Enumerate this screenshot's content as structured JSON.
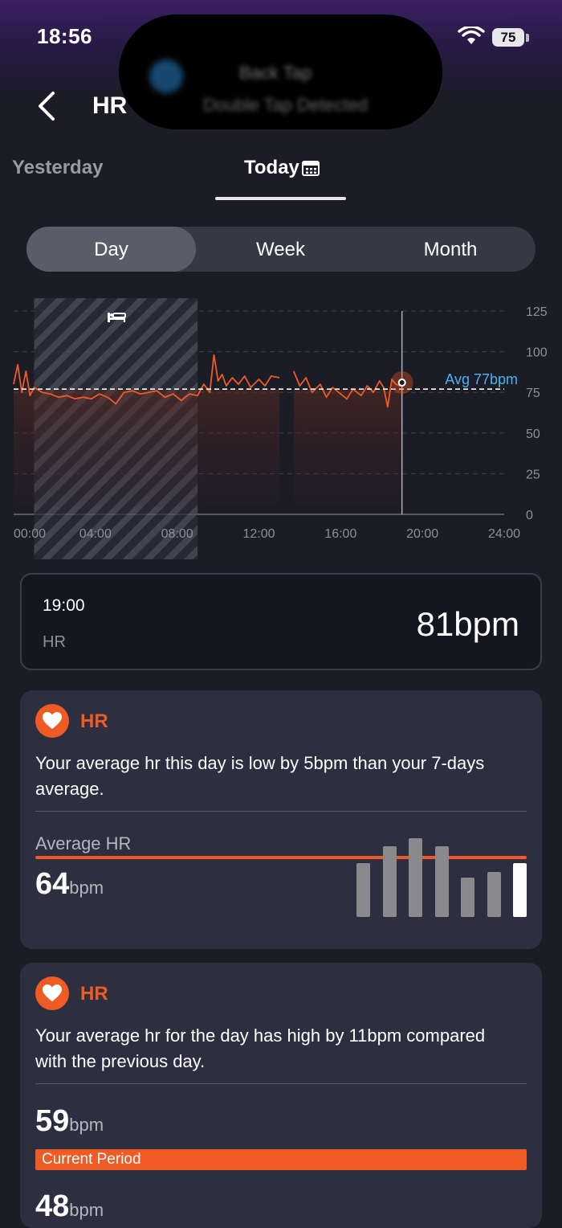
{
  "status_bar": {
    "time": "18:56",
    "battery": "75"
  },
  "notification": {
    "title": "Back Tap",
    "subtitle": "Double Tap Detected"
  },
  "header": {
    "title": "HR"
  },
  "date_tabs": {
    "previous": "Yesterday",
    "current": "Today"
  },
  "segments": {
    "day": "Day",
    "week": "Week",
    "month": "Month",
    "selected": "Day"
  },
  "chart_data": {
    "type": "line",
    "x_tick_labels": [
      "00:00",
      "04:00",
      "08:00",
      "12:00",
      "16:00",
      "20:00",
      "24:00"
    ],
    "y_tick_labels": [
      "125",
      "100",
      "75",
      "50",
      "25",
      "0"
    ],
    "ylim": [
      0,
      125
    ],
    "xlim_hours": [
      0,
      24
    ],
    "average_label": "Avg 77bpm",
    "average_value": 77,
    "sleep_period_hours": [
      1,
      9
    ],
    "cursor_hour": 19,
    "cursor_value": 81,
    "gap_hours": [
      13,
      13.7
    ],
    "series": [
      {
        "x": [
          0,
          0.2,
          0.4,
          0.6,
          0.8,
          1,
          1.4,
          1.8,
          2.2,
          2.6,
          3,
          3.4,
          3.8,
          4.2,
          4.6,
          5,
          5.4,
          5.8,
          6.2,
          6.6,
          7,
          7.4,
          7.8,
          8.2,
          8.6,
          9,
          9.3,
          9.6,
          9.8,
          10,
          10.2,
          10.4,
          10.7,
          11,
          11.3,
          11.6,
          12,
          12.3,
          12.6,
          13
        ],
        "y": [
          80,
          92,
          75,
          88,
          73,
          78,
          75,
          74,
          72,
          73,
          71,
          72,
          71,
          74,
          72,
          68,
          75,
          76,
          74,
          75,
          76,
          72,
          74,
          70,
          74,
          73,
          80,
          75,
          98,
          82,
          86,
          79,
          84,
          80,
          85,
          78,
          83,
          79,
          85,
          84
        ]
      },
      {
        "x": [
          13.7,
          14,
          14.3,
          14.6,
          15,
          15.3,
          15.6,
          16,
          16.3,
          16.6,
          17,
          17.3,
          17.6,
          17.9,
          18.1,
          18.3,
          18.5,
          18.7,
          18.9,
          19
        ],
        "y": [
          88,
          79,
          84,
          75,
          80,
          72,
          78,
          74,
          71,
          77,
          73,
          79,
          75,
          82,
          78,
          66,
          83,
          80,
          79,
          81
        ]
      }
    ]
  },
  "detail": {
    "time": "19:00",
    "label": "HR",
    "value": "81bpm"
  },
  "insight_1": {
    "title": "HR",
    "text": "Your average hr this day is low by 5bpm than your 7-days average.",
    "avg_label": "Average HR",
    "value": "64",
    "unit": "bpm",
    "bars": [
      0.57,
      0.75,
      0.84,
      0.75,
      0.42,
      0.48,
      0.57
    ]
  },
  "insight_2": {
    "title": "HR",
    "text": "Your average hr for the day has high by 11bpm compared with the previous day.",
    "current_value": "59",
    "current_unit": "bpm",
    "current_label": "Current Period",
    "previous_value": "48",
    "previous_unit": "bpm"
  },
  "colors": {
    "accent": "#f05a24",
    "avg_line": "#4db3f0",
    "background": "#1b1c26"
  }
}
